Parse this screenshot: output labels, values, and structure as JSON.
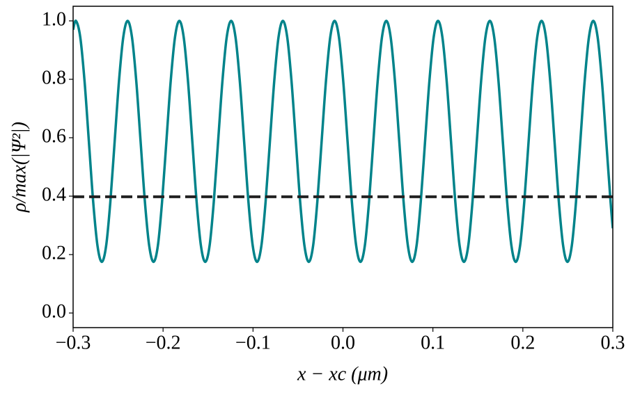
{
  "chart_data": {
    "type": "line",
    "xlabel": "x − xc (μm)",
    "ylabel": "ρ/max(|Ψ²|)",
    "xlim": [
      -0.3,
      0.3
    ],
    "ylim": [
      -0.05,
      1.05
    ],
    "xticks": [
      {
        "value": -0.3,
        "label": "−0.3"
      },
      {
        "value": -0.2,
        "label": "−0.2"
      },
      {
        "value": -0.1,
        "label": "−0.1"
      },
      {
        "value": 0,
        "label": "0.0"
      },
      0.1,
      0.2,
      0.3
    ],
    "yticks": [
      {
        "value": 0,
        "label": "0.0"
      },
      0.2,
      0.4,
      0.6,
      0.8,
      {
        "value": 1,
        "label": "1.0"
      }
    ],
    "grid": false,
    "series": [
      {
        "color": "#00838a",
        "dashed": false,
        "x": [
          -0.3,
          -0.2969,
          -0.2921,
          -0.2873,
          -0.2825,
          -0.2777,
          -0.2729,
          -0.2681,
          -0.2633,
          -0.2586,
          -0.2538,
          -0.249,
          -0.2442,
          -0.2394,
          -0.2346,
          -0.2298,
          -0.225,
          -0.2202,
          -0.2154,
          -0.2106,
          -0.2058,
          -0.2011,
          -0.1963,
          -0.1915,
          -0.1867,
          -0.1819,
          -0.1771,
          -0.1723,
          -0.1675,
          -0.1627,
          -0.1579,
          -0.1531,
          -0.1483,
          -0.1436,
          -0.1388,
          -0.134,
          -0.1292,
          -0.1243,
          -0.1195,
          -0.1147,
          -0.1099,
          -0.1051,
          -0.1003,
          -0.0955,
          -0.0907,
          -0.086,
          -0.0812,
          -0.0764,
          -0.0716,
          -0.0668,
          -0.062,
          -0.0572,
          -0.0524,
          -0.0476,
          -0.0428,
          -0.038,
          -0.0332,
          -0.0285,
          -0.0237,
          -0.0189,
          -0.0141,
          -0.0093,
          -0.0045,
          0.0003,
          0.0051,
          0.0099,
          0.0147,
          0.0195,
          0.0243,
          0.029,
          0.0338,
          0.0386,
          0.0434,
          0.0482,
          0.053,
          0.0578,
          0.0626,
          0.0674,
          0.0722,
          0.077,
          0.0818,
          0.0865,
          0.0913,
          0.0961,
          0.1009,
          0.1057,
          0.1105,
          0.1153,
          0.1201,
          0.1249,
          0.1297,
          0.1345,
          0.1393,
          0.144,
          0.1488,
          0.1536,
          0.1584,
          0.1633,
          0.1681,
          0.1729,
          0.1777,
          0.1825,
          0.1873,
          0.1921,
          0.1969,
          0.2016,
          0.2064,
          0.2112,
          0.216,
          0.2208,
          0.2256,
          0.2304,
          0.2352,
          0.24,
          0.2448,
          0.2496,
          0.2544,
          0.2591,
          0.2639,
          0.2687,
          0.2735,
          0.2783,
          0.2831,
          0.2879,
          0.2927,
          0.2975,
          0.3
        ],
        "values": [
          0.97,
          1.0,
          0.945,
          0.794,
          0.588,
          0.381,
          0.23,
          0.175,
          0.23,
          0.381,
          0.588,
          0.794,
          0.945,
          1.0,
          0.945,
          0.794,
          0.588,
          0.381,
          0.23,
          0.175,
          0.23,
          0.381,
          0.588,
          0.794,
          0.945,
          1.0,
          0.945,
          0.794,
          0.588,
          0.381,
          0.23,
          0.175,
          0.23,
          0.381,
          0.588,
          0.794,
          0.945,
          1.0,
          0.945,
          0.794,
          0.588,
          0.381,
          0.23,
          0.175,
          0.23,
          0.381,
          0.588,
          0.794,
          0.945,
          1.0,
          0.945,
          0.794,
          0.588,
          0.381,
          0.23,
          0.175,
          0.23,
          0.381,
          0.588,
          0.794,
          0.945,
          1.0,
          0.945,
          0.794,
          0.588,
          0.381,
          0.23,
          0.175,
          0.23,
          0.381,
          0.588,
          0.794,
          0.945,
          1.0,
          0.945,
          0.794,
          0.588,
          0.381,
          0.23,
          0.175,
          0.23,
          0.381,
          0.588,
          0.794,
          0.945,
          1.0,
          0.945,
          0.794,
          0.588,
          0.381,
          0.23,
          0.175,
          0.23,
          0.381,
          0.588,
          0.794,
          0.945,
          1.0,
          0.945,
          0.794,
          0.588,
          0.381,
          0.23,
          0.175,
          0.23,
          0.381,
          0.588,
          0.794,
          0.945,
          1.0,
          0.945,
          0.794,
          0.588,
          0.381,
          0.23,
          0.175,
          0.23,
          0.381,
          0.588,
          0.794,
          0.945,
          1.0,
          0.945,
          0.794,
          0.588,
          0.381,
          0.29
        ]
      },
      {
        "color": "#222222",
        "dashed": true,
        "x": [
          -0.3,
          0.3
        ],
        "values": [
          0.398,
          0.398
        ]
      }
    ]
  }
}
